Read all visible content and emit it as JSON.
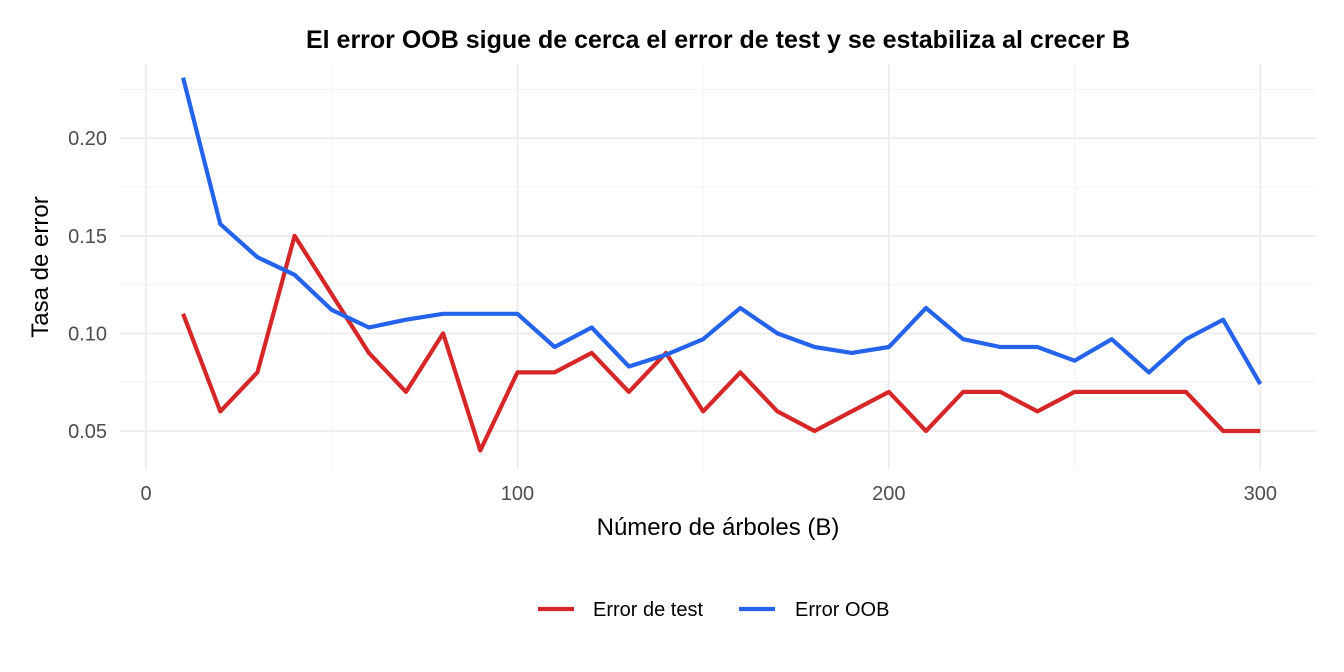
{
  "chart_data": {
    "type": "line",
    "title": "El error OOB sigue de cerca el error de test y se estabiliza al crecer B",
    "xlabel": "Número de árboles (B)",
    "ylabel": "Tasa de error",
    "xlim": [
      -7,
      315
    ],
    "ylim": [
      0.03,
      0.238
    ],
    "x_ticks": [
      0,
      100,
      200,
      300
    ],
    "x_tick_labels": [
      "0",
      "100",
      "200",
      "300"
    ],
    "y_ticks": [
      0.05,
      0.1,
      0.15,
      0.2
    ],
    "y_tick_labels": [
      "0.05",
      "0.10",
      "0.15",
      "0.20"
    ],
    "grid": true,
    "legend_position": "bottom",
    "x": [
      10,
      20,
      30,
      40,
      50,
      60,
      70,
      80,
      90,
      100,
      110,
      120,
      130,
      140,
      150,
      160,
      170,
      180,
      190,
      200,
      210,
      220,
      230,
      240,
      250,
      260,
      270,
      280,
      290,
      300
    ],
    "series": [
      {
        "name": "Error de test",
        "color": "#d62728",
        "values": [
          0.11,
          0.06,
          0.08,
          0.15,
          0.12,
          0.09,
          0.07,
          0.1,
          0.04,
          0.08,
          0.08,
          0.09,
          0.07,
          0.09,
          0.06,
          0.08,
          0.06,
          0.05,
          0.06,
          0.07,
          0.05,
          0.07,
          0.07,
          0.06,
          0.07,
          0.07,
          0.07,
          0.07,
          0.05,
          0.05
        ]
      },
      {
        "name": "Error OOB",
        "color": "#2563eb",
        "values": [
          0.231,
          0.156,
          0.139,
          0.13,
          0.112,
          0.103,
          0.107,
          0.11,
          0.11,
          0.11,
          0.093,
          0.103,
          0.083,
          0.089,
          0.097,
          0.113,
          0.1,
          0.093,
          0.09,
          0.093,
          0.113,
          0.097,
          0.093,
          0.093,
          0.086,
          0.097,
          0.08,
          0.097,
          0.107,
          0.074
        ]
      }
    ]
  }
}
